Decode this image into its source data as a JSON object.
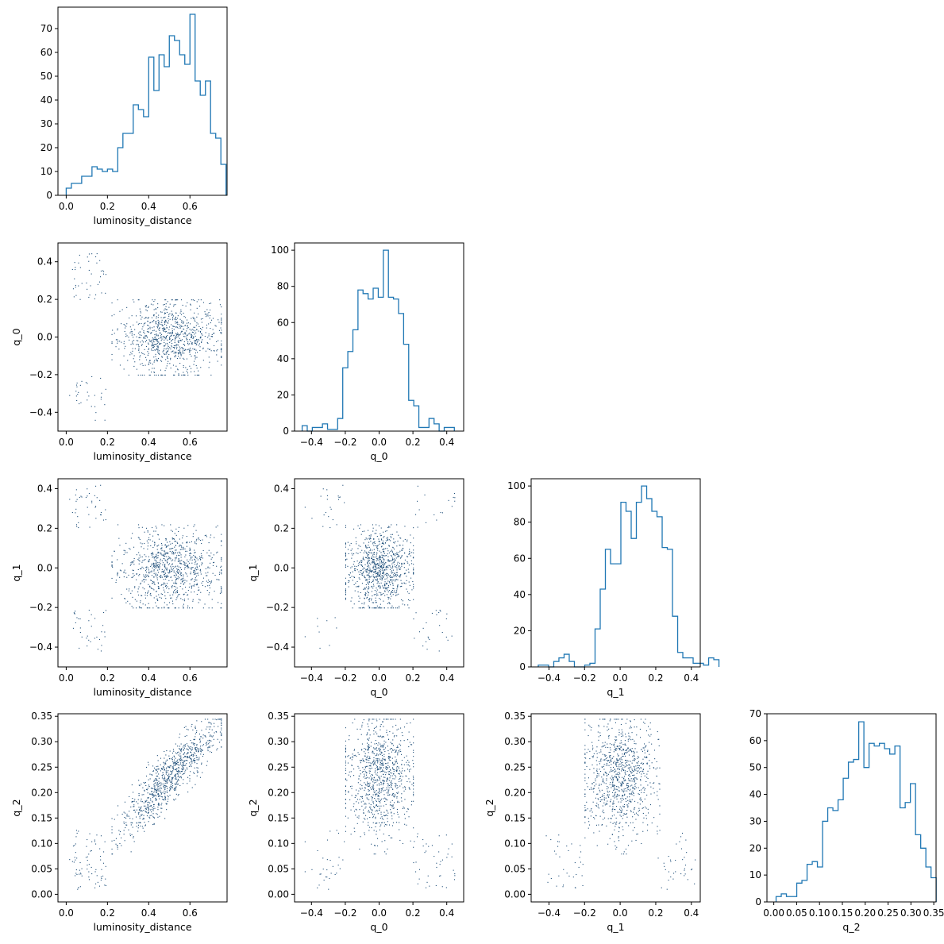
{
  "chart_data": {
    "type": "corner",
    "colors": {
      "series": "#1f77b4",
      "points": "#1f4f7a"
    },
    "parameters": [
      {
        "name": "luminosity_distance",
        "label": "luminosity_distance",
        "range": [
          -0.04,
          0.78
        ],
        "ticks": [
          0.0,
          0.2,
          0.4,
          0.6
        ],
        "tick_labels": [
          "0.0",
          "0.2",
          "0.4",
          "0.6"
        ]
      },
      {
        "name": "q_0",
        "label": "q_0",
        "range": [
          -0.5,
          0.5
        ],
        "ticks": [
          -0.4,
          -0.2,
          0.0,
          0.2,
          0.4
        ],
        "tick_labels": [
          "−0.4",
          "−0.2",
          "0.0",
          "0.2",
          "0.4"
        ]
      },
      {
        "name": "q_1",
        "label": "q_1",
        "range": [
          -0.5,
          0.45
        ],
        "ticks": [
          -0.4,
          -0.2,
          0.0,
          0.2,
          0.4
        ],
        "tick_labels": [
          "−0.4",
          "−0.2",
          "0.0",
          "0.2",
          "0.4"
        ]
      },
      {
        "name": "q_2",
        "label": "q_2",
        "range": [
          -0.015,
          0.355
        ],
        "ticks": [
          0.0,
          0.05,
          0.1,
          0.15,
          0.2,
          0.25,
          0.3,
          0.35
        ],
        "tick_labels": [
          "0.00",
          "0.05",
          "0.10",
          "0.15",
          "0.20",
          "0.25",
          "0.30",
          "0.35"
        ]
      }
    ],
    "histograms": [
      {
        "parameter": "luminosity_distance",
        "bin_start": 0.0,
        "bin_width": 0.025,
        "counts": [
          3,
          5,
          5,
          8,
          8,
          12,
          11,
          10,
          11,
          10,
          20,
          26,
          26,
          38,
          36,
          33,
          58,
          44,
          59,
          54,
          67,
          65,
          59,
          55,
          76,
          48,
          42,
          48,
          26,
          24,
          13
        ],
        "ylim": [
          0,
          79
        ],
        "yticks": [
          0,
          10,
          20,
          30,
          40,
          50,
          60,
          70
        ],
        "ytick_labels": [
          "0",
          "10",
          "20",
          "30",
          "40",
          "50",
          "60",
          "70"
        ]
      },
      {
        "parameter": "q_0",
        "bin_start": -0.455,
        "bin_width": 0.03,
        "counts": [
          3,
          0,
          2,
          2,
          4,
          1,
          1,
          7,
          35,
          44,
          56,
          78,
          76,
          73,
          79,
          74,
          100,
          74,
          73,
          65,
          48,
          17,
          14,
          2,
          2,
          7,
          4,
          0,
          2,
          2
        ],
        "ylim": [
          0,
          104
        ],
        "yticks": [
          0,
          20,
          40,
          60,
          80,
          100
        ],
        "ytick_labels": [
          "0",
          "20",
          "40",
          "60",
          "80",
          "100"
        ]
      },
      {
        "parameter": "q_1",
        "bin_start": -0.46,
        "bin_width": 0.029,
        "counts": [
          1,
          1,
          0,
          3,
          5,
          7,
          3,
          0,
          0,
          1,
          2,
          21,
          43,
          65,
          57,
          57,
          91,
          86,
          71,
          91,
          100,
          93,
          86,
          83,
          66,
          65,
          28,
          8,
          5,
          5,
          2,
          2,
          1,
          5,
          4
        ],
        "ylim": [
          0,
          104
        ],
        "yticks": [
          0,
          20,
          40,
          60,
          80,
          100
        ],
        "ytick_labels": [
          "0",
          "20",
          "40",
          "60",
          "80",
          "100"
        ]
      },
      {
        "parameter": "q_2",
        "bin_start": 0.005,
        "bin_width": 0.0113,
        "counts": [
          2,
          3,
          2,
          2,
          7,
          8,
          14,
          15,
          13,
          30,
          35,
          34,
          38,
          46,
          52,
          53,
          67,
          50,
          59,
          58,
          59,
          57,
          55,
          58,
          35,
          37,
          44,
          25,
          20,
          13,
          9
        ],
        "ylim": [
          0,
          70
        ],
        "yticks": [
          0,
          10,
          20,
          30,
          40,
          50,
          60,
          70
        ],
        "ytick_labels": [
          "0",
          "10",
          "20",
          "30",
          "40",
          "50",
          "60",
          "70"
        ]
      }
    ]
  }
}
